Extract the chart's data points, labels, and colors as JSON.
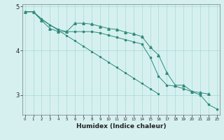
{
  "xlabel": "Humidex (Indice chaleur)",
  "x_values": [
    0,
    1,
    2,
    3,
    4,
    5,
    6,
    7,
    8,
    9,
    10,
    11,
    12,
    13,
    14,
    15,
    16,
    17,
    18,
    19,
    20,
    21,
    22,
    23
  ],
  "line_straight": [
    4.88,
    4.88,
    4.72,
    4.58,
    4.46,
    4.34,
    4.22,
    4.1,
    3.98,
    3.86,
    3.74,
    3.62,
    3.5,
    3.38,
    3.26,
    3.14,
    3.02,
    null,
    null,
    null,
    null,
    null,
    null,
    null
  ],
  "line_main": [
    4.88,
    4.88,
    4.7,
    4.58,
    4.48,
    4.43,
    4.43,
    4.43,
    4.43,
    4.4,
    4.35,
    4.3,
    4.25,
    4.2,
    4.15,
    3.85,
    3.42,
    3.22,
    3.2,
    3.14,
    3.07,
    3.0,
    2.78,
    2.68
  ],
  "line_zigzag": [
    4.88,
    4.88,
    4.68,
    4.5,
    4.43,
    4.43,
    4.62,
    4.62,
    4.6,
    4.55,
    4.5,
    4.48,
    4.42,
    4.38,
    4.32,
    4.08,
    3.9,
    3.5,
    3.22,
    3.22,
    3.08,
    3.05,
    3.02,
    null
  ],
  "line_color": "#2e8b7a",
  "bg_color": "#d6f0f0",
  "grid_color": "#a8d8d8",
  "ylim": [
    2.55,
    5.05
  ],
  "yticks": [
    3,
    4,
    5
  ],
  "xlim": [
    -0.3,
    23.3
  ]
}
